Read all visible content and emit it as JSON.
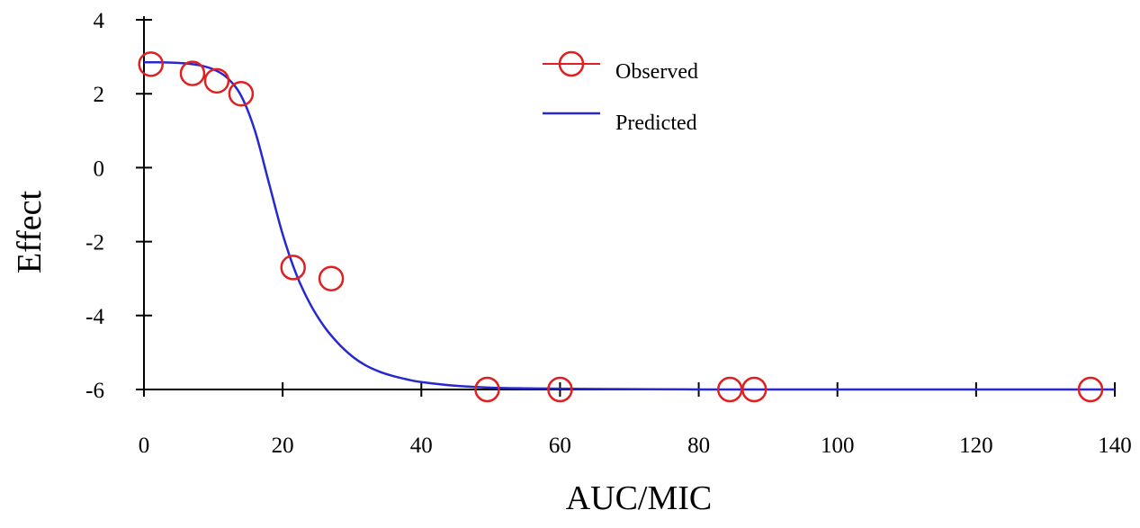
{
  "chart_data": {
    "type": "scatter",
    "xlabel": "AUC/MIC",
    "ylabel": "Effect",
    "xlim": [
      0,
      140
    ],
    "ylim": [
      -6,
      4
    ],
    "xticks": [
      0,
      20,
      40,
      60,
      80,
      100,
      120,
      140
    ],
    "yticks": [
      4,
      2,
      0,
      -2,
      -4,
      -6
    ],
    "grid": false,
    "legend_position": "top-center",
    "series": [
      {
        "name": "Observed",
        "kind": "markers",
        "marker": "open-circle",
        "color": "#e02020",
        "x": [
          1,
          7,
          10.5,
          14,
          21.5,
          27,
          49.5,
          60,
          84.5,
          88,
          136.5
        ],
        "y": [
          2.8,
          2.55,
          2.35,
          2.0,
          -2.7,
          -3.0,
          -6.0,
          -6.0,
          -6.0,
          -6.0,
          -6.0
        ]
      },
      {
        "name": "Predicted",
        "kind": "line",
        "color": "#2828d0",
        "x": [
          0,
          2,
          4,
          6,
          8,
          10,
          12,
          14,
          16,
          18,
          20,
          22,
          24,
          26,
          28,
          30,
          32,
          34,
          36,
          38,
          40,
          45,
          50,
          55,
          60,
          70,
          80,
          100,
          120,
          140
        ],
        "y": [
          2.85,
          2.85,
          2.84,
          2.82,
          2.77,
          2.66,
          2.43,
          1.95,
          1.0,
          -0.4,
          -1.8,
          -2.9,
          -3.7,
          -4.3,
          -4.75,
          -5.1,
          -5.35,
          -5.52,
          -5.64,
          -5.73,
          -5.8,
          -5.9,
          -5.95,
          -5.97,
          -5.98,
          -5.99,
          -6.0,
          -6.0,
          -6.0,
          -6.0
        ]
      }
    ]
  }
}
